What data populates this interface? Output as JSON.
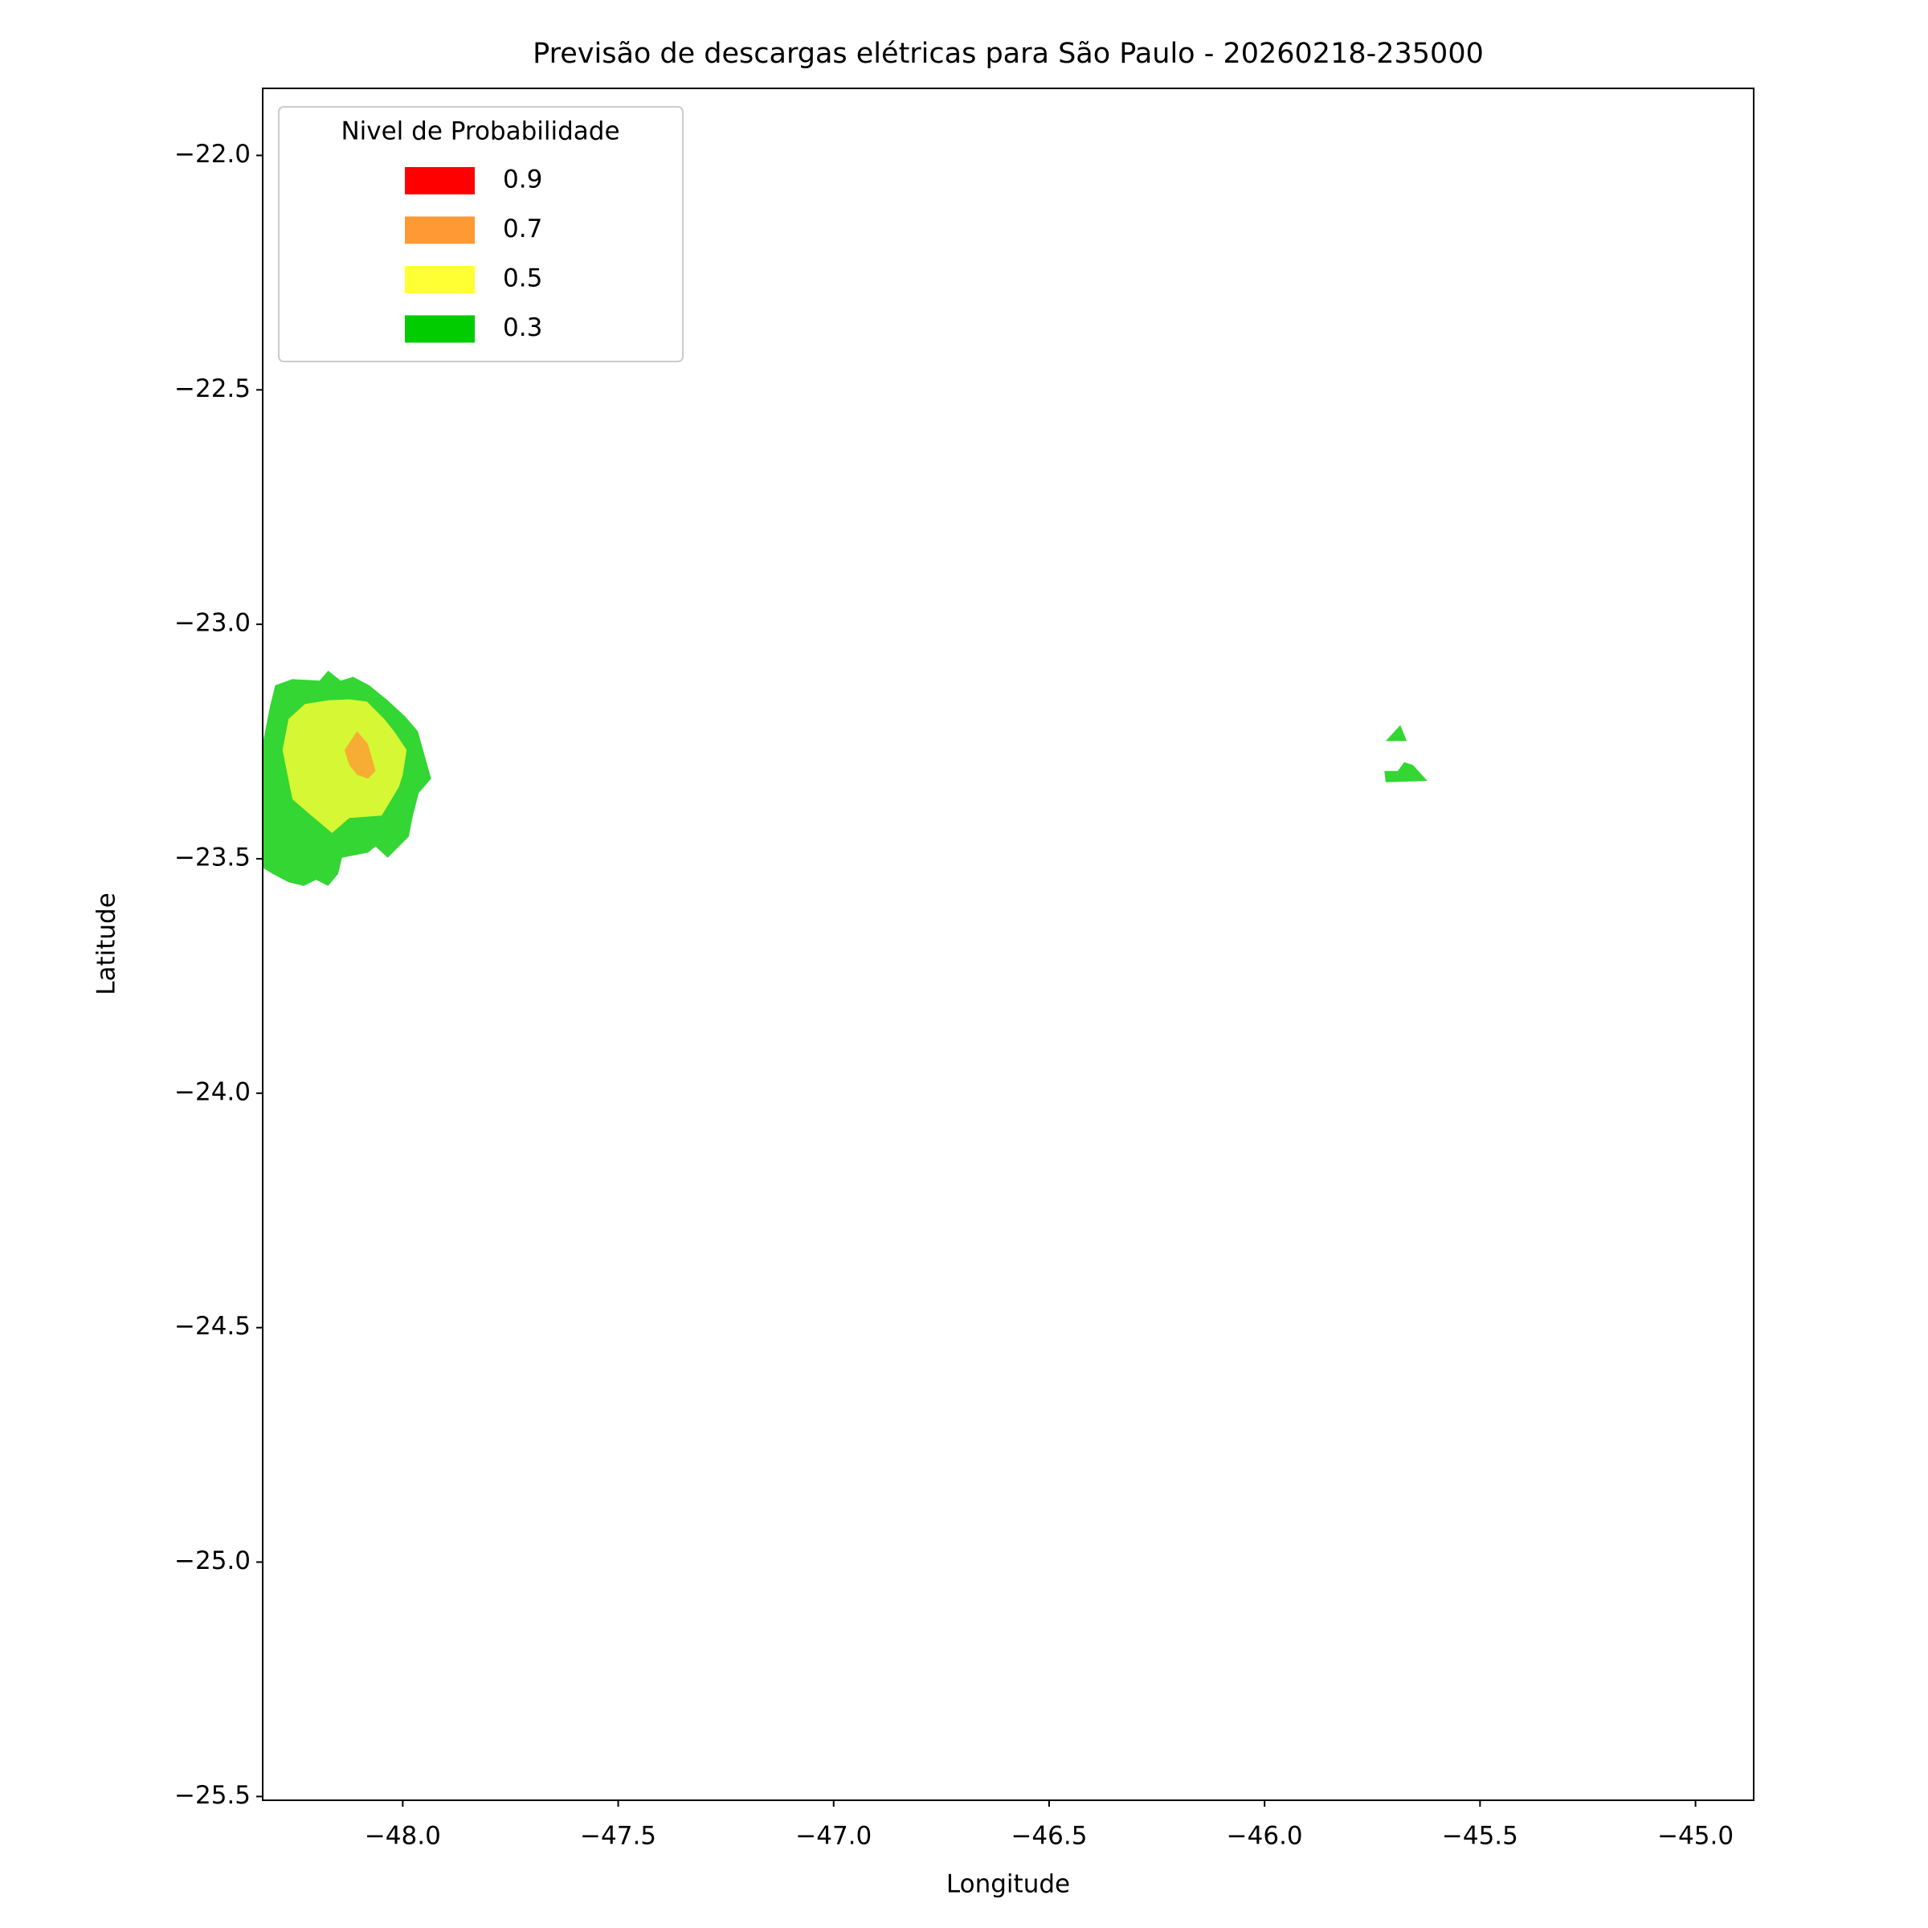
{
  "chart_data": {
    "type": "contourf",
    "title": "Previsão de descargas elétricas para São Paulo - 20260218-235000",
    "x_label": "Longitude",
    "y_label": "Latitude",
    "xlim": [
      -48.325,
      -44.865
    ],
    "ylim": [
      -25.508,
      -21.857
    ],
    "xticks": [
      {
        "value": -48.0,
        "label": "−48.0"
      },
      {
        "value": -47.5,
        "label": "−47.5"
      },
      {
        "value": -47.0,
        "label": "−47.0"
      },
      {
        "value": -46.5,
        "label": "−46.5"
      },
      {
        "value": -46.0,
        "label": "−46.0"
      },
      {
        "value": -45.5,
        "label": "−45.5"
      },
      {
        "value": -45.0,
        "label": "−45.0"
      }
    ],
    "yticks": [
      {
        "value": -22.0,
        "label": "−22.0"
      },
      {
        "value": -22.5,
        "label": "−22.5"
      },
      {
        "value": -23.0,
        "label": "−23.0"
      },
      {
        "value": -23.5,
        "label": "−23.5"
      },
      {
        "value": -24.0,
        "label": "−24.0"
      },
      {
        "value": -24.5,
        "label": "−24.5"
      },
      {
        "value": -25.0,
        "label": "−25.0"
      },
      {
        "value": -25.5,
        "label": "−25.5"
      }
    ],
    "legend_title": "Nivel de Probabilidade",
    "legend": "upper left",
    "alpha": 0.8,
    "series": [
      {
        "name": "0.9",
        "color": "#ff0000",
        "polygons": []
      },
      {
        "name": "0.7",
        "color": "#ff9933",
        "polygons": [
          {
            "x": [
              -48.135,
              -48.106,
              -48.081,
              -48.063,
              -48.081,
              -48.106,
              -48.124
            ],
            "y": [
              -23.268,
              -23.228,
              -23.255,
              -23.313,
              -23.329,
              -23.321,
              -23.3
            ]
          }
        ]
      },
      {
        "name": "0.5",
        "color": "#ffff33",
        "polygons": [
          {
            "x": [
              -48.265,
              -48.227,
              -48.173,
              -48.124,
              -48.083,
              -48.043,
              -48.02,
              -47.991,
              -48.0,
              -48.009,
              -48.049,
              -48.124,
              -48.164,
              -48.216,
              -48.256,
              -48.279
            ],
            "y": [
              -23.202,
              -23.17,
              -23.162,
              -23.16,
              -23.165,
              -23.202,
              -23.228,
              -23.268,
              -23.321,
              -23.347,
              -23.408,
              -23.413,
              -23.445,
              -23.405,
              -23.373,
              -23.268
            ]
          }
        ]
      },
      {
        "name": "0.3",
        "color": "#00cc00",
        "polygons": [
          {
            "x": [
              -48.296,
              -48.256,
              -48.193,
              -48.173,
              -48.144,
              -48.115,
              -48.078,
              -48.035,
              -47.994,
              -47.965,
              -47.934,
              -47.963,
              -47.977,
              -47.986,
              -48.035,
              -48.063,
              -48.081,
              -48.141,
              -48.15,
              -48.173,
              -48.201,
              -48.23,
              -48.265,
              -48.302,
              -48.325,
              -48.325,
              -48.308
            ],
            "y": [
              -23.13,
              -23.117,
              -23.12,
              -23.099,
              -23.12,
              -23.112,
              -23.13,
              -23.162,
              -23.197,
              -23.228,
              -23.329,
              -23.36,
              -23.41,
              -23.453,
              -23.498,
              -23.474,
              -23.487,
              -23.498,
              -23.532,
              -23.558,
              -23.545,
              -23.558,
              -23.55,
              -23.532,
              -23.519,
              -23.255,
              -23.175
            ]
          },
          {
            "x": [
              -45.719,
              -45.685,
              -45.67
            ],
            "y": [
              -23.249,
              -23.215,
              -23.249
            ]
          },
          {
            "x": [
              -45.722,
              -45.691,
              -45.676,
              -45.656,
              -45.622,
              -45.719
            ],
            "y": [
              -23.313,
              -23.313,
              -23.294,
              -23.3,
              -23.334,
              -23.337
            ]
          }
        ]
      }
    ]
  }
}
